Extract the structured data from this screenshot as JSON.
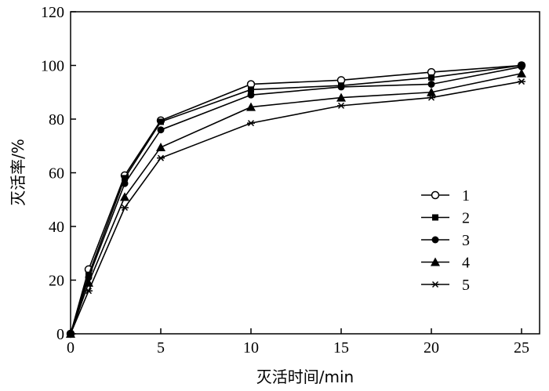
{
  "chart_data": {
    "type": "line",
    "xlabel": "灭活时间/min",
    "ylabel": "灭活率/%",
    "xlim": [
      0,
      26
    ],
    "ylim": [
      0,
      120
    ],
    "xticks": [
      0,
      5,
      10,
      15,
      20,
      25
    ],
    "yticks": [
      0,
      20,
      40,
      60,
      80,
      100,
      120
    ],
    "x": [
      0,
      1,
      3,
      5,
      10,
      15,
      20,
      25
    ],
    "legend_position": "center-right",
    "series": [
      {
        "name": "1",
        "marker": "circle-open",
        "color": "#000000",
        "values": [
          0,
          24,
          59,
          79.5,
          93,
          94.5,
          97.5,
          100
        ]
      },
      {
        "name": "2",
        "marker": "square",
        "color": "#000000",
        "values": [
          0,
          22,
          58,
          79,
          91,
          92.5,
          95.5,
          100
        ]
      },
      {
        "name": "3",
        "marker": "circle",
        "color": "#000000",
        "values": [
          0,
          21,
          56,
          76,
          89,
          92,
          93,
          99.5
        ]
      },
      {
        "name": "4",
        "marker": "triangle",
        "color": "#000000",
        "values": [
          0,
          19,
          51,
          69.5,
          84.5,
          88,
          90,
          97
        ]
      },
      {
        "name": "5",
        "marker": "asterisk",
        "color": "#000000",
        "values": [
          0,
          16,
          47,
          65.5,
          78.5,
          85,
          88,
          94
        ]
      }
    ]
  }
}
